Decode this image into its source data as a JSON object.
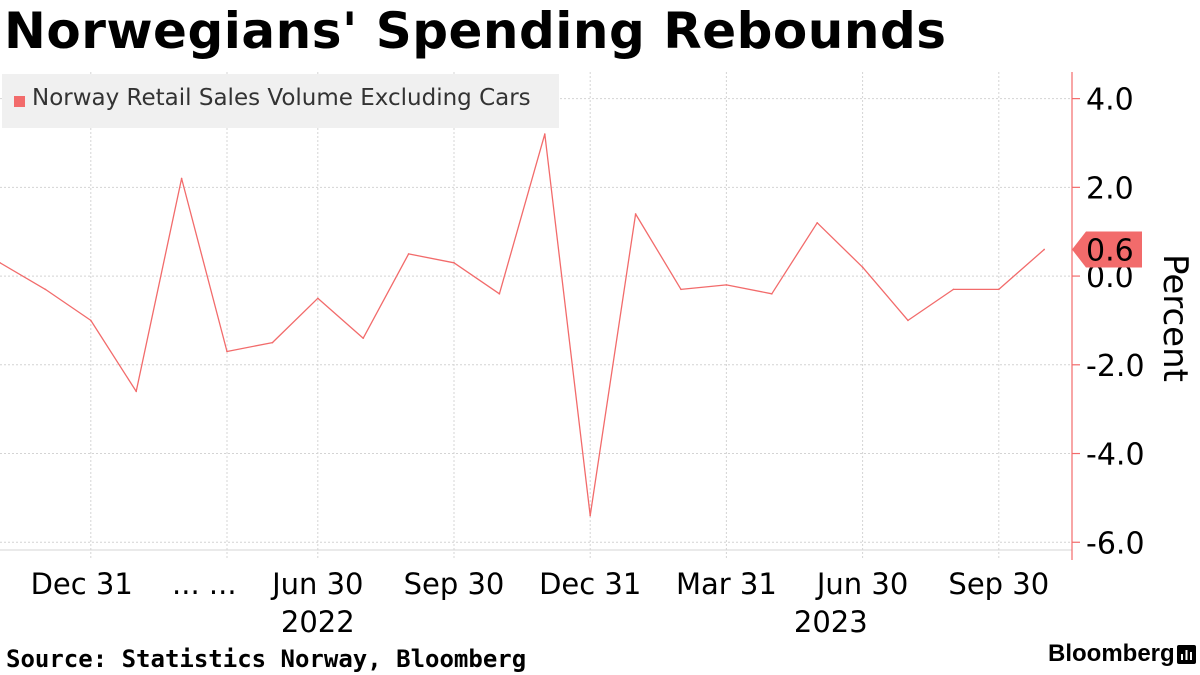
{
  "title": "Norwegians' Spending Rebounds",
  "source": "Source: Statistics Norway, Bloomberg",
  "brand": "Bloomberg",
  "colors": {
    "series": "#f26b6b",
    "grid": "#d4d4d4",
    "axis": "#f26b6b",
    "text": "#000000"
  },
  "chart_data": {
    "type": "line",
    "title": "Norwegians' Spending Rebounds",
    "ylabel": "Percent",
    "ylim": [
      -6.4,
      4.6
    ],
    "yticks": [
      4.0,
      2.0,
      0.0,
      -2.0,
      -4.0,
      -6.0
    ],
    "ytick_labels": [
      "4.0",
      "2.0",
      "0.0",
      "-2.0",
      "-4.0",
      "-6.0"
    ],
    "legend": "Norway Retail Sales Volume Excluding Cars",
    "legend_position": "top-left",
    "last_value_label": "0.6",
    "month_gridlines": [
      2,
      5,
      7,
      10,
      13,
      16,
      19,
      22
    ],
    "x_ticks": [
      {
        "index": 1.8,
        "label": "Dec 31"
      },
      {
        "index": 4.5,
        "label": "... ..."
      },
      {
        "index": 7,
        "label": "Jun 30"
      },
      {
        "index": 10,
        "label": "Sep 30"
      },
      {
        "index": 13,
        "label": "Dec 31"
      },
      {
        "index": 16,
        "label": "Mar 31"
      },
      {
        "index": 19,
        "label": "Jun 30"
      },
      {
        "index": 22,
        "label": "Sep 30"
      }
    ],
    "year_labels": [
      {
        "index": 7,
        "label": "2022"
      },
      {
        "index": 18.3,
        "label": "2023"
      }
    ],
    "series": [
      {
        "name": "Norway Retail Sales Volume Excluding Cars",
        "values": [
          0.3,
          -0.3,
          -1.0,
          -2.6,
          2.2,
          -1.7,
          -1.5,
          -0.5,
          -1.4,
          0.5,
          0.3,
          -0.4,
          3.2,
          -5.4,
          1.4,
          -0.3,
          -0.2,
          -0.4,
          1.2,
          0.2,
          -1.0,
          -0.3,
          -0.3,
          0.6
        ]
      }
    ]
  }
}
